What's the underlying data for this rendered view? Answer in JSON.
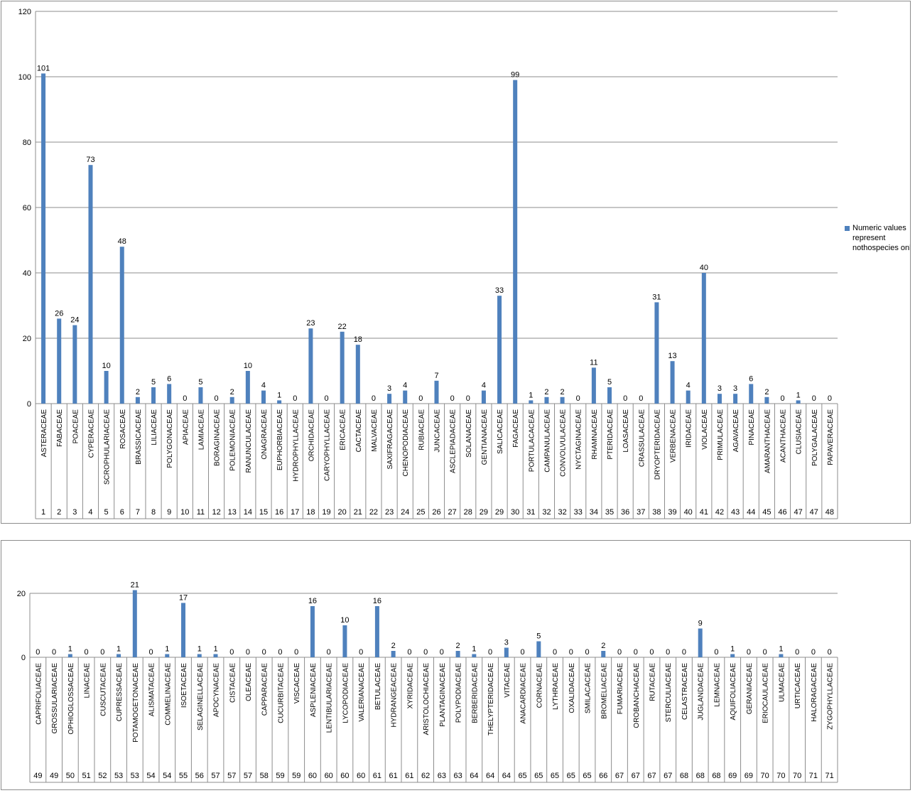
{
  "series_color": "#4f81bd",
  "chart_data": [
    {
      "type": "bar",
      "title": "",
      "ylim": [
        0,
        120
      ],
      "yticks": [
        0,
        20,
        40,
        60,
        80,
        100,
        120
      ],
      "grid": true,
      "legend": {
        "position": "right",
        "entries": [
          "Numeric values represent nothospecies only"
        ]
      },
      "categories": [
        "ASTERACEAE",
        "FABACEAE",
        "POACEAE",
        "CYPERACEAE",
        "SCROPHULARIACEAE",
        "ROSACEAE",
        "BRASSICACEAE",
        "LILIACEAE",
        "POLYGONACEAE",
        "APIACEAE",
        "LAMIACEAE",
        "BORAGINACEAE",
        "POLEMONIACEAE",
        "RANUNCULACEAE",
        "ONAGRACEAE",
        "EUPHORBIACEAE",
        "HYDROPHYLLACEAE",
        "ORCHIDACEAE",
        "CARYOPHYLLACEAE",
        "ERICACEAE",
        "CACTACEAE",
        "MALVACEAE",
        "SAXIFRAGACEAE",
        "CHENOPODIACEAE",
        "RUBIACEAE",
        "JUNCACEAE",
        "ASCLEPIADACEAE",
        "SOLANACEAE",
        "GENTIANACEAE",
        "SALICACEAE",
        "FAGACEAE",
        "PORTULACACEAE",
        "CAMPANULACEAE",
        "CONVOLVULACEAE",
        "NYCTAGINACEAE",
        "RHAMNACEAE",
        "PTERIDACEAE",
        "LOASACEAE",
        "CRASSULACEAE",
        "DRYOPTERIDACEAE",
        "VERBENACEAE",
        "IRIDACEAE",
        "VIOLACEAE",
        "PRIMULACEAE",
        "AGAVACEAE",
        "PINACEAE",
        "AMARANTHACEAE",
        "ACANTHACEAE",
        "CLUSIACEAE",
        "POLYGALACEAE",
        "PAPAVERACEAE"
      ],
      "ranks": [
        "1",
        "2",
        "3",
        "4",
        "5",
        "6",
        "7",
        "8",
        "9",
        "10",
        "11",
        "12",
        "13",
        "14",
        "15",
        "16",
        "17",
        "18",
        "19",
        "20",
        "21",
        "22",
        "23",
        "24",
        "25",
        "26",
        "27",
        "28",
        "29",
        "29",
        "30",
        "31",
        "32",
        "32",
        "33",
        "34",
        "35",
        "36",
        "37",
        "38",
        "39",
        "40",
        "41",
        "42",
        "43",
        "44",
        "45",
        "46",
        "47",
        "47",
        "48"
      ],
      "values": [
        101,
        26,
        24,
        73,
        10,
        48,
        2,
        5,
        6,
        0,
        5,
        0,
        2,
        10,
        4,
        1,
        0,
        23,
        0,
        22,
        18,
        0,
        3,
        4,
        0,
        7,
        0,
        0,
        4,
        33,
        99,
        1,
        2,
        2,
        0,
        11,
        5,
        0,
        0,
        31,
        13,
        4,
        40,
        3,
        3,
        6,
        2,
        0,
        1,
        0,
        0
      ]
    },
    {
      "type": "bar",
      "title": "",
      "ylim": [
        0,
        20
      ],
      "yticks": [
        0,
        20
      ],
      "grid": true,
      "categories": [
        "CAPRIFOLIACEAE",
        "GROSSULARIACEAE",
        "OPHIOGLOSSACEAE",
        "LINACEAE",
        "CUSCUTACEAE",
        "CUPRESSACEAE",
        "POTAMOGETONACEAE",
        "ALISMATACEAE",
        "COMMELINACEAE",
        "ISOETACEAE",
        "SELAGINELLACEAE",
        "APOCYNACEAE",
        "CISTACEAE",
        "OLEACEAE",
        "CAPPARACEAE",
        "CUCURBITACEAE",
        "VISCACEAE",
        "ASPLENIACEAE",
        "LENTIBULARIACEAE",
        "LYCOPODIACEAE",
        "VALERIANACEAE",
        "BETULACEAE",
        "HYDRANGEACEAE",
        "XYRIDACEAE",
        "ARISTOLOCHIACEAE",
        "PLANTAGINACEAE",
        "POLYPODIACEAE",
        "BERBERIDACEAE",
        "THELYPTERIDACEAE",
        "VITACEAE",
        "ANACARDIACEAE",
        "CORNACEAE",
        "LYTHRACEAE",
        "OXALIDACEAE",
        "SMILACACEAE",
        "BROMELIACEAE",
        "FUMARIACEAE",
        "OROBANCHACEAE",
        "RUTACEAE",
        "STERCULIACEAE",
        "CELASTRACEAE",
        "JUGLANDACEAE",
        "LEMNACEAE",
        "AQUIFOLIACEAE",
        "GERANIACEAE",
        "ERIOCAULACEAE",
        "ULMACEAE",
        "URTICACEAE",
        "HALORAGACEAE",
        "ZYGOPHYLLACEAE"
      ],
      "ranks": [
        "49",
        "49",
        "50",
        "51",
        "52",
        "53",
        "53",
        "54",
        "54",
        "55",
        "56",
        "57",
        "57",
        "57",
        "58",
        "59",
        "59",
        "60",
        "60",
        "60",
        "60",
        "61",
        "61",
        "61",
        "62",
        "63",
        "63",
        "64",
        "64",
        "64",
        "65",
        "65",
        "65",
        "65",
        "65",
        "66",
        "67",
        "67",
        "67",
        "67",
        "68",
        "68",
        "68",
        "69",
        "69",
        "70",
        "70",
        "70",
        "71",
        "71"
      ],
      "values": [
        0,
        0,
        1,
        0,
        0,
        1,
        21,
        0,
        1,
        17,
        1,
        1,
        0,
        0,
        0,
        0,
        0,
        16,
        0,
        10,
        0,
        16,
        2,
        0,
        0,
        0,
        2,
        1,
        0,
        3,
        0,
        5,
        0,
        0,
        0,
        2,
        0,
        0,
        0,
        0,
        0,
        9,
        0,
        1,
        0,
        0,
        1,
        0,
        0,
        0
      ]
    }
  ]
}
